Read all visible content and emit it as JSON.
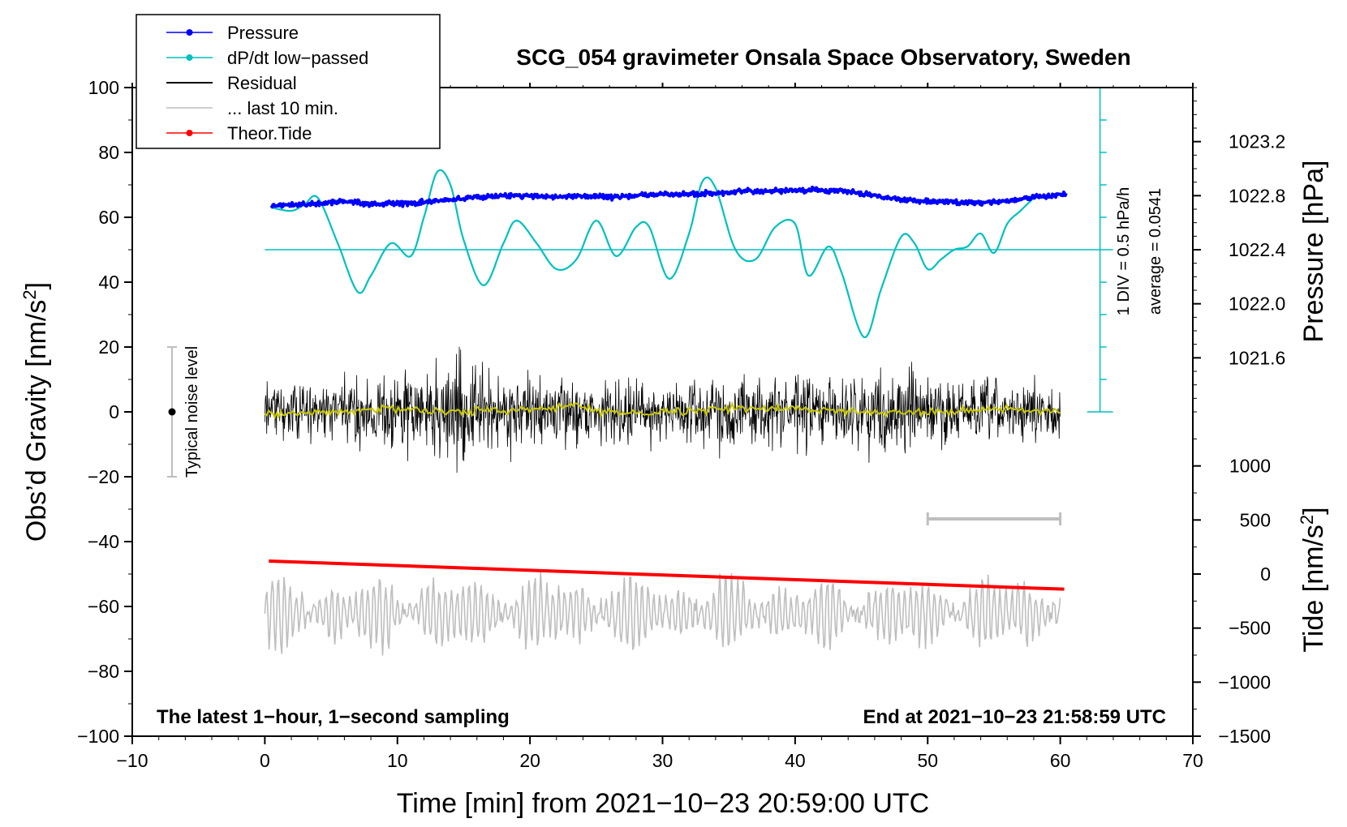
{
  "chart_data": {
    "type": "line",
    "title": "SCG_054 gravimeter Onsala Space Observatory, Sweden",
    "xlabel": "Time [min] from 2021−10−23 20:59:00 UTC",
    "ylabel_left_main": "Obs’d Gravity [nm/s",
    "ylabel_left_sup": "2",
    "ylabel_left_tail": "]",
    "ylabel_right_top": "Pressure [hPa]",
    "ylabel_right_bottom_main": "Tide [nm/s",
    "ylabel_right_bottom_sup": "2",
    "ylabel_right_bottom_tail": "]",
    "xlim": [
      -10,
      70
    ],
    "ylim": [
      -100,
      100
    ],
    "pressure_lim": [
      1021.2,
      1023.6
    ],
    "tide_lim": [
      -1500,
      1500
    ],
    "x_ticks": [
      -10,
      0,
      10,
      20,
      30,
      40,
      50,
      60,
      70
    ],
    "x_tick_labels": [
      "−10",
      "0",
      "10",
      "20",
      "30",
      "40",
      "50",
      "60",
      "70"
    ],
    "y_ticks": [
      -100,
      -80,
      -60,
      -40,
      -20,
      0,
      20,
      40,
      60,
      80,
      100
    ],
    "y_tick_labels": [
      "−100",
      "−80",
      "−60",
      "−40",
      "−20",
      "0",
      "20",
      "40",
      "60",
      "80",
      "100"
    ],
    "pressure_ticks": [
      1021.6,
      1022.0,
      1022.4,
      1022.8,
      1023.2
    ],
    "pressure_tick_labels": [
      "1021.6",
      "1022.0",
      "1022.4",
      "1022.8",
      "1023.2"
    ],
    "tide_ticks": [
      -1500,
      -1000,
      -500,
      0,
      500,
      1000
    ],
    "tide_tick_labels": [
      "−1500",
      "−1000",
      "−500",
      "0",
      "500",
      "1000"
    ],
    "legend": [
      {
        "name": "Pressure",
        "color": "#0000ff",
        "marker": true
      },
      {
        "name": "dP/dt low−passed",
        "color": "#00c0c0",
        "marker": true
      },
      {
        "name": "Residual",
        "color": "#000000",
        "marker": false
      },
      {
        "name": "... last 10 min.",
        "color": "#bebebe",
        "marker": false
      },
      {
        "name": "Theor.Tide",
        "color": "#ff0000",
        "marker": true
      }
    ],
    "series": [
      {
        "name": "Pressure",
        "color": "#0000ff",
        "units": "hPa",
        "x": [
          0.5,
          2,
          4,
          6,
          8,
          10,
          12,
          14,
          16,
          18,
          20,
          22,
          24,
          26,
          28,
          30,
          32,
          34,
          36,
          38,
          40,
          42,
          44,
          46,
          48,
          50,
          52,
          54,
          56,
          58,
          60.5
        ],
        "values": [
          1022.72,
          1022.73,
          1022.74,
          1022.76,
          1022.74,
          1022.74,
          1022.75,
          1022.77,
          1022.79,
          1022.8,
          1022.8,
          1022.79,
          1022.8,
          1022.79,
          1022.8,
          1022.81,
          1022.81,
          1022.82,
          1022.83,
          1022.83,
          1022.84,
          1022.84,
          1022.83,
          1022.8,
          1022.77,
          1022.76,
          1022.75,
          1022.75,
          1022.76,
          1022.79,
          1022.81
        ]
      },
      {
        "name": "dP/dt low−passed",
        "color": "#00c0c0",
        "units": "nm/s2-equivalent display",
        "x": [
          0.5,
          2,
          3,
          4,
          5.5,
          7,
          8,
          9.5,
          11,
          12,
          13,
          14,
          15,
          16.5,
          18,
          19,
          20.5,
          22,
          23.5,
          25,
          26.5,
          28,
          29,
          30.5,
          32,
          33,
          34,
          35.5,
          37,
          38.5,
          40,
          41,
          42.5,
          43.5,
          45.2,
          46.5,
          48,
          49,
          50,
          51,
          52,
          53,
          54,
          55,
          56,
          57,
          58
        ],
        "values": [
          63,
          62,
          64,
          66,
          52,
          37,
          42,
          52,
          48,
          60,
          74,
          70,
          53,
          39,
          52,
          59,
          52,
          44,
          47,
          59,
          48,
          57,
          57,
          41,
          55,
          71,
          69,
          50,
          47,
          57,
          58,
          42,
          51,
          43,
          23,
          38,
          54,
          52,
          44,
          47,
          50,
          51,
          55,
          49,
          58,
          62,
          66
        ]
      },
      {
        "name": "Residual",
        "color": "#000000",
        "units": "nm/s2",
        "x": [
          0,
          60
        ],
        "values": [
          0,
          0
        ],
        "envelope_x": [
          0,
          5,
          10,
          14,
          15,
          16,
          20,
          25,
          30,
          35,
          40,
          45,
          49,
          50,
          55,
          60
        ],
        "envelope_amp": [
          12,
          14,
          18,
          22,
          28,
          20,
          14,
          14,
          14,
          16,
          16,
          16,
          20,
          16,
          14,
          12
        ]
      },
      {
        "name": "Residual smoothed",
        "color": "#c8c800",
        "units": "nm/s2",
        "x": [
          0,
          5,
          10,
          15,
          20,
          23.5,
          25,
          30,
          35,
          40,
          45,
          50,
          55,
          60
        ],
        "values": [
          -1,
          0,
          1,
          0,
          1,
          2,
          0,
          0,
          1,
          1,
          0,
          0,
          1,
          0
        ]
      },
      {
        "name": "... last 10 min.",
        "color": "#bebebe",
        "units": "nm/s2",
        "x": [
          0,
          60
        ],
        "values": [
          -62,
          -62
        ],
        "amplitude": 12
      },
      {
        "name": "Theor.Tide",
        "color": "#ff0000",
        "units": "nm/s2",
        "x": [
          0.3,
          60.3
        ],
        "values": [
          120,
          -140
        ]
      }
    ],
    "noise_bar": {
      "x": -7,
      "y_low": -20,
      "y_high": 20,
      "label": "Typical noise level"
    },
    "scale_bar": {
      "x_start": 50,
      "x_end": 60,
      "y": -33
    },
    "pressure_scale": {
      "x": 63,
      "label_div": "1 DIV = 0.5 hPa/h",
      "label_avg": "average = 0.0541",
      "baseline_y": 50
    },
    "annotation_left": "The latest 1−hour, 1−second sampling",
    "annotation_right": "End at 2021−10−23 21:58:59 UTC"
  }
}
